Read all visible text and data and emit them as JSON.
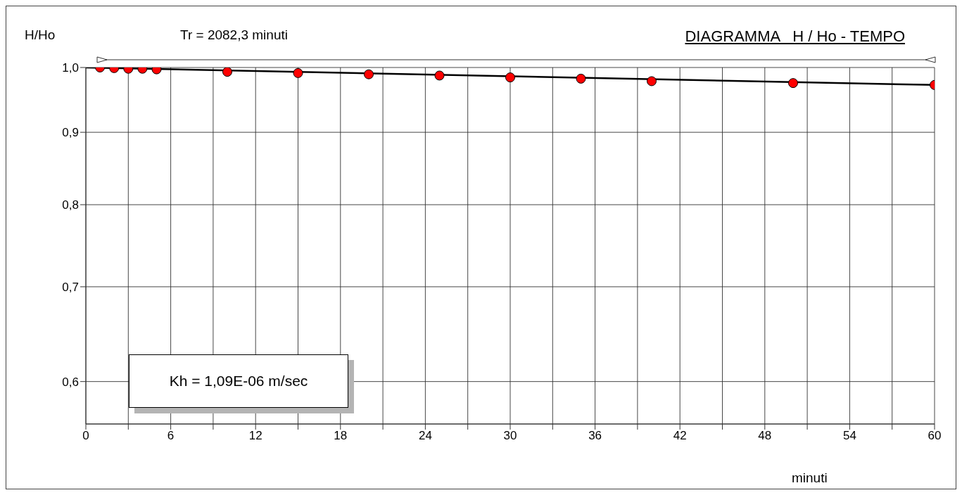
{
  "chart_data": {
    "type": "scatter",
    "title": "DIAGRAMMA   H / Ho - TEMPO",
    "subtitle": "Tr = 2082,3 minuti",
    "xlabel": "minuti",
    "ylabel": "H/Ho",
    "annotations": [
      "Kh = 1,09E-06 m/sec"
    ],
    "series": [
      {
        "color": "#ff0000",
        "marker": "circle",
        "x": [
          1,
          2,
          3,
          4,
          5,
          10,
          15,
          20,
          25,
          30,
          35,
          40,
          50,
          60
        ],
        "values": [
          1.0,
          0.999,
          0.998,
          0.998,
          0.997,
          0.993,
          0.991,
          0.989,
          0.987,
          0.984,
          0.982,
          0.978,
          0.975,
          0.972
        ]
      },
      {
        "type": "line",
        "color": "#000000",
        "x": [
          0,
          60
        ],
        "values": [
          1.0,
          0.972
        ]
      }
    ],
    "xlim": [
      0,
      60
    ],
    "xticks": [
      0,
      {
        "value": 3,
        "label": null
      },
      6,
      {
        "value": 9,
        "label": null
      },
      12,
      {
        "value": 15,
        "label": null
      },
      18,
      {
        "value": 21,
        "label": null
      },
      24,
      {
        "value": 27,
        "label": null
      },
      30,
      {
        "value": 33,
        "label": null
      },
      36,
      {
        "value": 39,
        "label": null
      },
      42,
      {
        "value": 45,
        "label": null
      },
      48,
      {
        "value": 51,
        "label": null
      },
      54,
      {
        "value": 57,
        "label": null
      },
      60
    ],
    "ylim": [
      0.56,
      1.0
    ],
    "yticks": [
      {
        "value": 0.6,
        "label": "0,6"
      },
      {
        "value": 0.7,
        "label": "0,7"
      },
      {
        "value": 0.8,
        "label": "0,8"
      },
      {
        "value": 0.9,
        "label": "0,9"
      },
      {
        "value": 1.0,
        "label": "1,0"
      }
    ],
    "log": "y",
    "grid": true
  }
}
